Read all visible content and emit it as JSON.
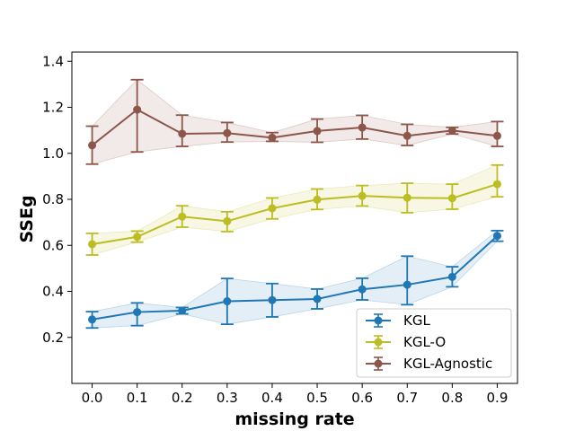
{
  "chart_data": {
    "type": "line",
    "title": "",
    "xlabel": "missing rate",
    "ylabel": "SSEg",
    "x": [
      0.0,
      0.1,
      0.2,
      0.3,
      0.4,
      0.5,
      0.6,
      0.7,
      0.8,
      0.9
    ],
    "x_tick_labels": [
      "0.0",
      "0.1",
      "0.2",
      "0.3",
      "0.4",
      "0.5",
      "0.6",
      "0.7",
      "0.8",
      "0.9"
    ],
    "xlim": [
      -0.045,
      0.945
    ],
    "ylim": [
      0.0,
      1.44
    ],
    "y_ticks": [
      0.2,
      0.4,
      0.6,
      0.8,
      1.0,
      1.2,
      1.4
    ],
    "y_tick_labels": [
      "0.2",
      "0.4",
      "0.6",
      "0.8",
      "1.0",
      "1.2",
      "1.4"
    ],
    "grid": false,
    "legend_position": "lower-right",
    "series": [
      {
        "name": "KGL",
        "color": "#1f77b4",
        "values": [
          0.278,
          0.31,
          0.316,
          0.357,
          0.362,
          0.367,
          0.409,
          0.429,
          0.463,
          0.641
        ],
        "err_low": [
          0.241,
          0.251,
          0.302,
          0.257,
          0.289,
          0.324,
          0.363,
          0.342,
          0.42,
          0.618
        ],
        "err_high": [
          0.312,
          0.35,
          0.33,
          0.456,
          0.434,
          0.41,
          0.457,
          0.553,
          0.507,
          0.664
        ]
      },
      {
        "name": "KGL-O",
        "color": "#bcbd22",
        "values": [
          0.605,
          0.637,
          0.725,
          0.705,
          0.761,
          0.799,
          0.815,
          0.807,
          0.805,
          0.866
        ],
        "err_low": [
          0.558,
          0.614,
          0.679,
          0.66,
          0.715,
          0.756,
          0.771,
          0.742,
          0.757,
          0.811
        ],
        "err_high": [
          0.652,
          0.662,
          0.772,
          0.746,
          0.806,
          0.845,
          0.86,
          0.87,
          0.866,
          0.949
        ]
      },
      {
        "name": "KGL-Agnostic",
        "color": "#8c564b",
        "values": [
          1.035,
          1.19,
          1.085,
          1.088,
          1.068,
          1.097,
          1.112,
          1.076,
          1.099,
          1.076
        ],
        "err_low": [
          0.953,
          1.006,
          1.03,
          1.049,
          1.052,
          1.048,
          1.062,
          1.034,
          1.084,
          1.03
        ],
        "err_high": [
          1.118,
          1.32,
          1.166,
          1.134,
          1.09,
          1.149,
          1.165,
          1.126,
          1.113,
          1.138
        ]
      }
    ]
  }
}
